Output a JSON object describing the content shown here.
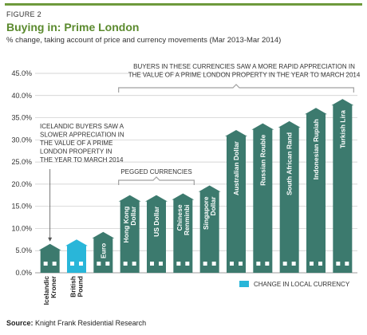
{
  "figure_label": "FIGURE 2",
  "title": "Buying in: Prime London",
  "subtitle": "% change, taking account of price and currency movements (Mar 2013-Mar 2014)",
  "source": {
    "prefix": "Source:",
    "text": "Knight Frank Residential Research"
  },
  "colors": {
    "accent": "#6e9a3c",
    "title": "#5b8a2e",
    "bar": "#3c7a6e",
    "bar_highlight": "#29b6d9",
    "text": "#333333",
    "grid": "#c8c8c8",
    "bracket": "#a0a0a0"
  },
  "annotations": {
    "icelandic": [
      "ICELANDIC BUYERS SAW A",
      "SLOWER APPRECIATION IN",
      "THE VALUE OF A PRIME",
      "LONDON PROPERTY IN",
      "THE YEAR TO MARCH 2014"
    ],
    "pegged": "PEGGED CURRENCIES",
    "rapid": [
      "BUYERS IN THESE CURRENCIES SAW A MORE RAPID APPRECIATION IN",
      "THE VALUE OF A PRIME LONDON PROPERTY IN THE YEAR TO MARCH 2014"
    ]
  },
  "chart_data": {
    "type": "bar",
    "title": "Buying in: Prime London",
    "categories": [
      "Icelandic Kroner",
      "British Pound",
      "Euro",
      "Hong Kong Dollar",
      "US Dollar",
      "Chinese Renminbi",
      "Singapore Dollar",
      "Australian Dollar",
      "Russian Rouble",
      "South African Rand",
      "Indonesian Rupiah",
      "Turkish Lira"
    ],
    "category_label_lines": [
      [
        "Icelandic",
        "Kroner"
      ],
      [
        "British",
        "Pound"
      ],
      [
        "Euro"
      ],
      [
        "Hong Kong",
        "Dollar"
      ],
      [
        "US Dollar"
      ],
      [
        "Chinese",
        "Renminbi"
      ],
      [
        "Singapore",
        "Dollar"
      ],
      [
        "Australian Dollar"
      ],
      [
        "Russian Rouble"
      ],
      [
        "South African Rand"
      ],
      [
        "Indonesian Rupiah"
      ],
      [
        "Turkish Lira"
      ]
    ],
    "label_position": [
      "below",
      "below",
      "inside",
      "inside",
      "inside",
      "inside",
      "inside",
      "inside",
      "inside",
      "inside",
      "inside",
      "inside"
    ],
    "values": [
      5.8,
      6.8,
      8.5,
      16.8,
      16.8,
      17.2,
      19.0,
      31.5,
      33.0,
      33.5,
      36.5,
      38.5
    ],
    "highlight_index": 1,
    "ylim": [
      0,
      45
    ],
    "yticks": [
      0,
      5,
      10,
      15,
      20,
      25,
      30,
      35,
      40,
      45
    ],
    "ytick_labels": [
      "0.0%",
      "5.0%",
      "10.0%",
      "15.0%",
      "20.0%",
      "25.0%",
      "30.0%",
      "35.0%",
      "40.0%",
      "45.0%"
    ],
    "grid": true,
    "legend": [
      {
        "label": "CHANGE IN LOCAL CURRENCY",
        "color": "#29b6d9"
      }
    ],
    "legend_position": "bottom-right"
  }
}
